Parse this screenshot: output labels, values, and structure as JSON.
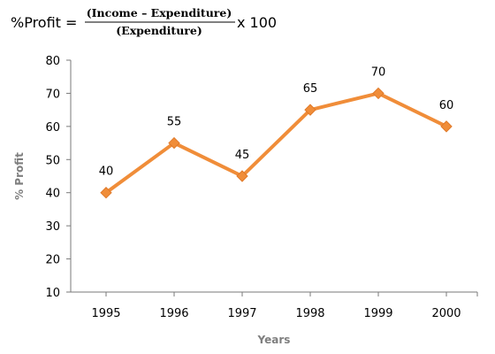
{
  "formula": {
    "lhs": "%Profit =",
    "numerator": "(Income – Expenditure)",
    "denominator": "(Expenditure)",
    "multiplier": "x 100"
  },
  "chart_data": {
    "type": "line",
    "title": "",
    "xlabel": "Years",
    "ylabel": "% Profit",
    "categories": [
      "1995",
      "1996",
      "1997",
      "1998",
      "1999",
      "2000"
    ],
    "series": [
      {
        "values": [
          40,
          55,
          45,
          65,
          70,
          60
        ],
        "color": "#f08d39"
      }
    ],
    "ylim": [
      10,
      80
    ],
    "yticks": [
      10,
      20,
      30,
      40,
      50,
      60,
      70,
      80
    ],
    "grid": false,
    "marker": "diamond",
    "data_labels": true
  }
}
